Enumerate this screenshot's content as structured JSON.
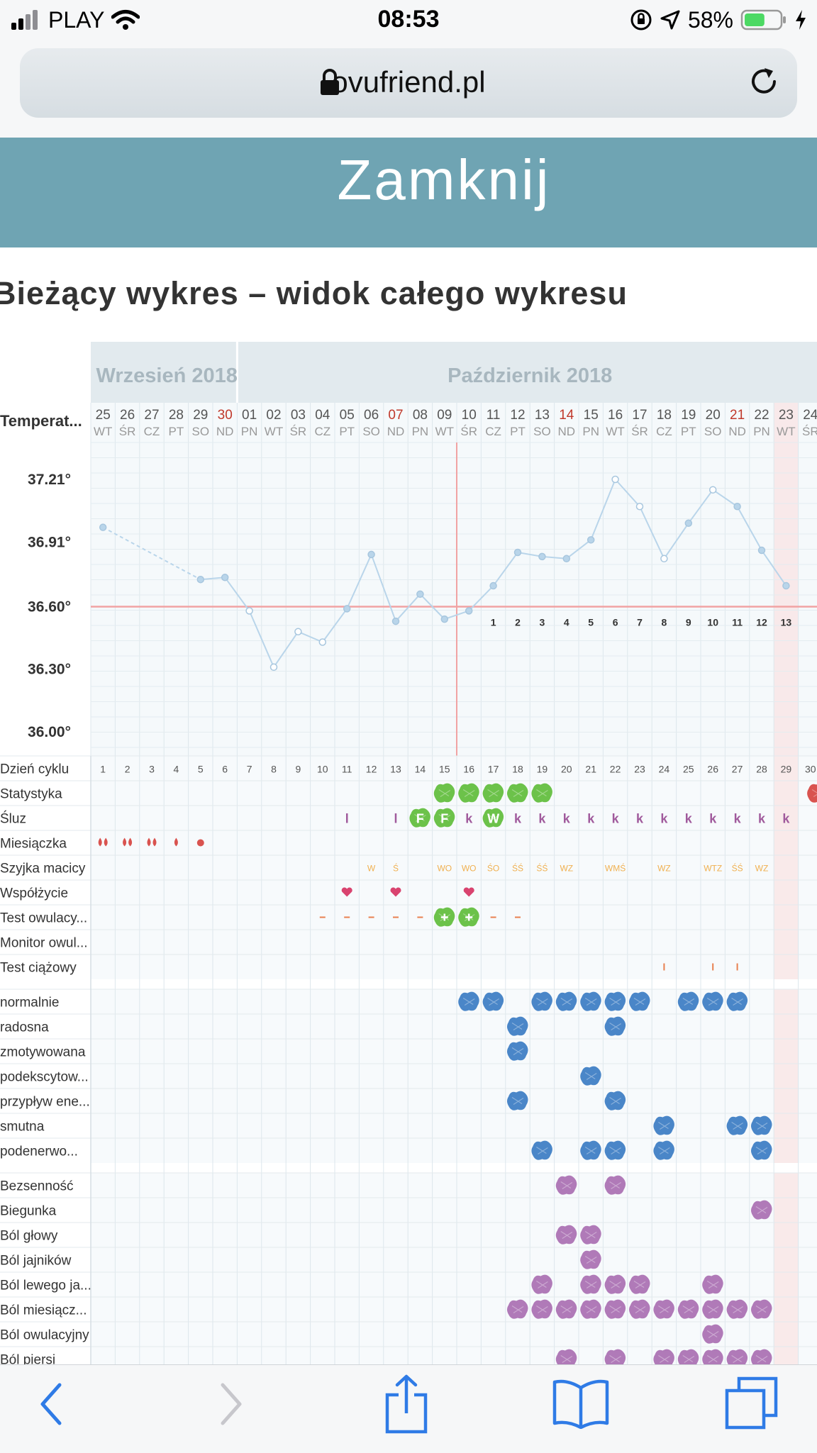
{
  "status_bar": {
    "carrier": "PLAY",
    "time": "08:53",
    "battery": "58%",
    "battery_color": "#4cd964"
  },
  "browser": {
    "url": "ovufriend.pl",
    "icons": [
      "lock-icon",
      "reload-icon",
      "back-icon",
      "forward-icon",
      "share-icon",
      "bookmarks-icon",
      "tabs-icon"
    ]
  },
  "close_button": {
    "label": "Zamknij",
    "color": "#6fa4b3"
  },
  "page": {
    "title": "Bieżący wykres – widok całego wykresu"
  },
  "chart": {
    "months": [
      "Wrzesień 2018",
      "Październik 2018"
    ],
    "temp_label": "Temperat...",
    "temp_ticks": [
      "37.21°",
      "36.91°",
      "36.60°",
      "36.30°",
      "36.00°"
    ],
    "days": [
      {
        "d": "25",
        "w": "WT"
      },
      {
        "d": "26",
        "w": "ŚR"
      },
      {
        "d": "27",
        "w": "CZ"
      },
      {
        "d": "28",
        "w": "PT"
      },
      {
        "d": "29",
        "w": "SO"
      },
      {
        "d": "30",
        "w": "ND",
        "red": true
      },
      {
        "d": "01",
        "w": "PN"
      },
      {
        "d": "02",
        "w": "WT"
      },
      {
        "d": "03",
        "w": "ŚR"
      },
      {
        "d": "04",
        "w": "CZ"
      },
      {
        "d": "05",
        "w": "PT"
      },
      {
        "d": "06",
        "w": "SO"
      },
      {
        "d": "07",
        "w": "ND",
        "red": true
      },
      {
        "d": "08",
        "w": "PN"
      },
      {
        "d": "09",
        "w": "WT"
      },
      {
        "d": "10",
        "w": "ŚR"
      },
      {
        "d": "11",
        "w": "CZ"
      },
      {
        "d": "12",
        "w": "PT"
      },
      {
        "d": "13",
        "w": "SO"
      },
      {
        "d": "14",
        "w": "ND",
        "red": true
      },
      {
        "d": "15",
        "w": "PN"
      },
      {
        "d": "16",
        "w": "WT"
      },
      {
        "d": "17",
        "w": "ŚR"
      },
      {
        "d": "18",
        "w": "CZ"
      },
      {
        "d": "19",
        "w": "PT"
      },
      {
        "d": "20",
        "w": "SO"
      },
      {
        "d": "21",
        "w": "ND",
        "red": true
      },
      {
        "d": "22",
        "w": "PN"
      },
      {
        "d": "23",
        "w": "WT"
      },
      {
        "d": "24",
        "w": "ŚR"
      }
    ],
    "temps": [
      36.98,
      null,
      null,
      null,
      36.73,
      36.74,
      36.58,
      36.31,
      36.48,
      36.43,
      36.59,
      36.85,
      36.53,
      36.66,
      36.54,
      36.58,
      36.7,
      36.86,
      36.84,
      36.83,
      36.92,
      37.21,
      37.08,
      36.83,
      37.0,
      37.16,
      37.08,
      36.87,
      36.7,
      null
    ],
    "cycle_numbers_below_line": [
      "1",
      "2",
      "3",
      "4",
      "5",
      "6",
      "7",
      "8",
      "9",
      "10",
      "11",
      "12",
      "13"
    ],
    "cover_line": 36.6,
    "colors": {
      "line": "#b9d5ea",
      "cover": "#f1a3a3",
      "green": "#6cc24a",
      "blue": "#4a86c8",
      "purple": "#b07ab8",
      "red": "#d9534f",
      "orange": "#f0b050",
      "pink": "#d9436f"
    },
    "rows": [
      {
        "label": "Dzień cyklu"
      },
      {
        "label": "Statystyka"
      },
      {
        "label": "Śluz"
      },
      {
        "label": "Miesiączka"
      },
      {
        "label": "Szyjka macicy"
      },
      {
        "label": "Współżycie"
      },
      {
        "label": "Test owulacy..."
      },
      {
        "label": "Monitor owul..."
      },
      {
        "label": "Test ciążowy"
      }
    ],
    "cycle_days": [
      "1",
      "2",
      "3",
      "4",
      "5",
      "6",
      "7",
      "8",
      "9",
      "10",
      "11",
      "12",
      "13",
      "14",
      "15",
      "16",
      "17",
      "18",
      "19",
      "20",
      "21",
      "22",
      "23",
      "24",
      "25",
      "26",
      "27",
      "28",
      "29",
      "30"
    ],
    "mucus": [
      {
        "i": 10,
        "t": "l"
      },
      {
        "i": 12,
        "t": "l"
      },
      {
        "i": 13,
        "t": "F",
        "g": true
      },
      {
        "i": 14,
        "t": "F",
        "g": true
      },
      {
        "i": 15,
        "t": "k"
      },
      {
        "i": 16,
        "t": "W",
        "g": true
      },
      {
        "i": 17,
        "t": "k"
      },
      {
        "i": 18,
        "t": "k"
      },
      {
        "i": 19,
        "t": "k"
      },
      {
        "i": 20,
        "t": "k"
      },
      {
        "i": 21,
        "t": "k"
      },
      {
        "i": 22,
        "t": "k"
      },
      {
        "i": 23,
        "t": "k"
      },
      {
        "i": 24,
        "t": "k"
      },
      {
        "i": 25,
        "t": "k"
      },
      {
        "i": 26,
        "t": "k"
      },
      {
        "i": 27,
        "t": "k"
      },
      {
        "i": 28,
        "t": "k"
      }
    ],
    "cervix": [
      {
        "i": 11,
        "t": "W"
      },
      {
        "i": 12,
        "t": "Ś"
      },
      {
        "i": 14,
        "t": "WO"
      },
      {
        "i": 15,
        "t": "WO"
      },
      {
        "i": 16,
        "t": "ŚO"
      },
      {
        "i": 17,
        "t": "ŚŚ"
      },
      {
        "i": 18,
        "t": "ŚŚ"
      },
      {
        "i": 19,
        "t": "WZ"
      },
      {
        "i": 21,
        "t": "WMŚ"
      },
      {
        "i": 23,
        "t": "WZ"
      },
      {
        "i": 25,
        "t": "WTZ"
      },
      {
        "i": 26,
        "t": "ŚŚ"
      },
      {
        "i": 27,
        "t": "WZ"
      }
    ],
    "mood_rows": [
      {
        "label": "normalnie"
      },
      {
        "label": "radosna"
      },
      {
        "label": "zmotywowana"
      },
      {
        "label": "podekscytow..."
      },
      {
        "label": "przypływ ene..."
      },
      {
        "label": "smutna"
      },
      {
        "label": "podenerwo..."
      }
    ],
    "symptom_rows": [
      {
        "label": "Bezsenność"
      },
      {
        "label": "Biegunka"
      },
      {
        "label": "Ból głowy"
      },
      {
        "label": "Ból jajników"
      },
      {
        "label": "Ból lewego ja..."
      },
      {
        "label": "Ból miesiącz..."
      },
      {
        "label": "Ból owulacyjny"
      },
      {
        "label": "Ból piersi"
      }
    ]
  }
}
